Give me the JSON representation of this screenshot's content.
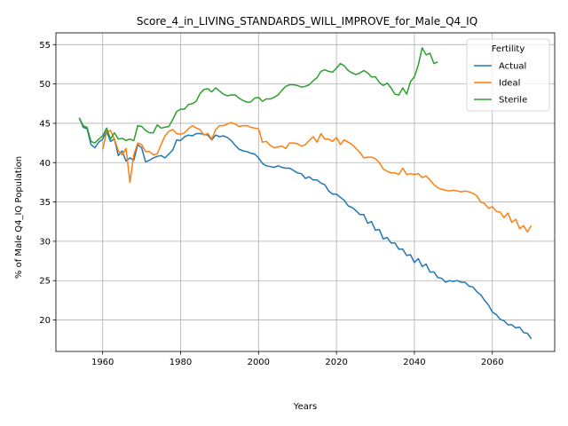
{
  "chart_data": {
    "type": "line",
    "title": "Score_4_in_LIVING_STANDARDS_WILL_IMPROVE_for_Male_Q4_IQ",
    "xlabel": "Years",
    "ylabel": "% of Male Q4_IQ Population",
    "xlim": [
      1948,
      2076
    ],
    "ylim": [
      16,
      56.5
    ],
    "xticks": [
      1960,
      1980,
      2000,
      2020,
      2040,
      2060
    ],
    "yticks": [
      20,
      25,
      30,
      35,
      40,
      45,
      50,
      55
    ],
    "grid": true,
    "legend": {
      "title": "Fertility",
      "placement": "top-right"
    },
    "series": [
      {
        "name": "Actual",
        "color": "#1f77b4",
        "x": [
          1954,
          1955,
          1956,
          1957,
          1958,
          1959,
          1960,
          1961,
          1962,
          1963,
          1964,
          1965,
          1966,
          1967,
          1968,
          1969,
          1970,
          1971,
          1972,
          1973,
          1974,
          1975,
          1976,
          1977,
          1978,
          1979,
          1980,
          1981,
          1982,
          1983,
          1984,
          1985,
          1986,
          1987,
          1988,
          1989,
          1990,
          1991,
          1992,
          1993,
          1994,
          1995,
          1996,
          1997,
          1998,
          1999,
          2000,
          2001,
          2002,
          2003,
          2004,
          2005,
          2006,
          2007,
          2008,
          2009,
          2010,
          2011,
          2012,
          2013,
          2014,
          2015,
          2016,
          2017,
          2018,
          2019,
          2020,
          2021,
          2022,
          2023,
          2024,
          2025,
          2026,
          2027,
          2028,
          2029,
          2030,
          2031,
          2032,
          2033,
          2034,
          2035,
          2036,
          2037,
          2038,
          2039,
          2040,
          2041,
          2042,
          2043,
          2044,
          2045,
          2046,
          2047,
          2048,
          2049,
          2050,
          2051,
          2052,
          2053,
          2054,
          2055,
          2056,
          2057,
          2058,
          2059,
          2060,
          2061,
          2062,
          2063,
          2064,
          2065,
          2066,
          2067,
          2068,
          2069,
          2070
        ],
        "y": [
          45.7,
          44.5,
          44.3,
          42.3,
          41.9,
          42.6,
          43.0,
          44.0,
          42.7,
          43.0,
          40.9,
          41.5,
          40.2,
          40.6,
          40.3,
          42.3,
          41.9,
          40.1,
          40.3,
          40.6,
          40.8,
          40.9,
          40.6,
          41.1,
          41.6,
          42.9,
          42.8,
          43.3,
          43.5,
          43.4,
          43.7,
          43.7,
          43.6,
          43.5,
          42.9,
          43.5,
          43.3,
          43.4,
          43.2,
          42.8,
          42.2,
          41.7,
          41.5,
          41.4,
          41.2,
          41.1,
          40.6,
          39.9,
          39.6,
          39.5,
          39.4,
          39.6,
          39.4,
          39.3,
          39.3,
          39.0,
          38.7,
          38.6,
          38.0,
          38.2,
          37.8,
          37.8,
          37.4,
          37.2,
          36.4,
          36.0,
          36.0,
          35.6,
          35.2,
          34.5,
          34.3,
          33.9,
          33.4,
          33.4,
          32.3,
          32.5,
          31.4,
          31.5,
          30.3,
          30.5,
          29.8,
          29.8,
          29.0,
          29.0,
          28.2,
          28.3,
          27.3,
          27.8,
          26.8,
          27.1,
          26.1,
          26.1,
          25.4,
          25.3,
          24.8,
          25.0,
          24.9,
          25.0,
          24.8,
          24.8,
          24.3,
          24.2,
          23.6,
          23.2,
          22.5,
          21.9,
          21.0,
          20.7,
          20.1,
          19.9,
          19.4,
          19.4,
          19.0,
          19.1,
          18.4,
          18.3,
          17.6
        ]
      },
      {
        "name": "Ideal",
        "color": "#ff7f0e",
        "x": [
          1960,
          1961,
          1962,
          1963,
          1964,
          1965,
          1966,
          1967,
          1968,
          1969,
          1970,
          1971,
          1972,
          1973,
          1974,
          1975,
          1976,
          1977,
          1978,
          1979,
          1980,
          1981,
          1982,
          1983,
          1984,
          1985,
          1986,
          1987,
          1988,
          1989,
          1990,
          1991,
          1992,
          1993,
          1994,
          1995,
          1996,
          1997,
          1998,
          1999,
          2000,
          2001,
          2002,
          2003,
          2004,
          2005,
          2006,
          2007,
          2008,
          2009,
          2010,
          2011,
          2012,
          2013,
          2014,
          2015,
          2016,
          2017,
          2018,
          2019,
          2020,
          2021,
          2022,
          2023,
          2024,
          2025,
          2026,
          2027,
          2028,
          2029,
          2030,
          2031,
          2032,
          2033,
          2034,
          2035,
          2036,
          2037,
          2038,
          2039,
          2040,
          2041,
          2042,
          2043,
          2044,
          2045,
          2046,
          2047,
          2048,
          2049,
          2050,
          2051,
          2052,
          2053,
          2054,
          2055,
          2056,
          2057,
          2058,
          2059,
          2060,
          2061,
          2062,
          2063,
          2064,
          2065,
          2066,
          2067,
          2068,
          2069,
          2070
        ],
        "y": [
          41.7,
          43.9,
          44.1,
          43.0,
          41.5,
          41.0,
          41.8,
          37.5,
          41.0,
          42.5,
          42.3,
          41.4,
          41.4,
          41.0,
          41.1,
          42.3,
          43.4,
          44.0,
          44.2,
          43.7,
          43.6,
          43.8,
          44.3,
          44.7,
          44.4,
          44.2,
          43.5,
          43.7,
          43.0,
          44.2,
          44.7,
          44.7,
          44.9,
          45.1,
          44.9,
          44.6,
          44.7,
          44.7,
          44.5,
          44.4,
          44.3,
          42.6,
          42.7,
          42.2,
          41.9,
          42.0,
          42.1,
          41.8,
          42.5,
          42.5,
          42.4,
          42.1,
          42.3,
          42.8,
          43.3,
          42.6,
          43.7,
          43.0,
          43.0,
          42.7,
          43.2,
          42.3,
          42.9,
          42.6,
          42.3,
          41.8,
          41.3,
          40.6,
          40.7,
          40.7,
          40.5,
          40.0,
          39.2,
          38.9,
          38.7,
          38.7,
          38.5,
          39.3,
          38.5,
          38.6,
          38.5,
          38.6,
          38.1,
          38.3,
          37.8,
          37.2,
          36.8,
          36.6,
          36.5,
          36.4,
          36.5,
          36.4,
          36.3,
          36.4,
          36.3,
          36.1,
          35.8,
          35.0,
          34.8,
          34.2,
          34.4,
          33.8,
          33.7,
          33.0,
          33.6,
          32.4,
          32.8,
          31.6,
          32.0,
          31.2,
          32.0
        ]
      },
      {
        "name": "Sterile",
        "color": "#2ca02c",
        "x": [
          1954,
          1955,
          1956,
          1957,
          1958,
          1959,
          1960,
          1961,
          1962,
          1963,
          1964,
          1965,
          1966,
          1967,
          1968,
          1969,
          1970,
          1971,
          1972,
          1973,
          1974,
          1975,
          1976,
          1977,
          1978,
          1979,
          1980,
          1981,
          1982,
          1983,
          1984,
          1985,
          1986,
          1987,
          1988,
          1989,
          1990,
          1991,
          1992,
          1993,
          1994,
          1995,
          1996,
          1997,
          1998,
          1999,
          2000,
          2001,
          2002,
          2003,
          2004,
          2005,
          2006,
          2007,
          2008,
          2009,
          2010,
          2011,
          2012,
          2013,
          2014,
          2015,
          2016,
          2017,
          2018,
          2019,
          2020,
          2021,
          2022,
          2023,
          2024,
          2025,
          2026,
          2027,
          2028,
          2029,
          2030,
          2031,
          2032,
          2033,
          2034,
          2035,
          2036,
          2037,
          2038,
          2039,
          2040,
          2041,
          2042,
          2043,
          2044,
          2045,
          2046
        ],
        "y": [
          45.7,
          44.7,
          44.5,
          42.7,
          42.5,
          43.0,
          43.4,
          44.4,
          43.0,
          43.8,
          43.0,
          43.1,
          42.8,
          43.0,
          42.8,
          44.7,
          44.6,
          44.1,
          43.8,
          43.8,
          44.8,
          44.4,
          44.5,
          44.6,
          45.5,
          46.5,
          46.8,
          46.8,
          47.4,
          47.5,
          47.8,
          48.8,
          49.3,
          49.4,
          49.0,
          49.5,
          49.1,
          48.7,
          48.5,
          48.6,
          48.6,
          48.2,
          47.9,
          47.7,
          47.7,
          48.2,
          48.3,
          47.8,
          48.1,
          48.1,
          48.3,
          48.6,
          49.2,
          49.7,
          49.9,
          49.9,
          49.8,
          49.6,
          49.7,
          49.9,
          50.4,
          50.8,
          51.6,
          51.8,
          51.6,
          51.5,
          52.0,
          52.6,
          52.3,
          51.7,
          51.4,
          51.2,
          51.4,
          51.7,
          51.4,
          50.9,
          50.9,
          50.2,
          49.8,
          50.1,
          49.5,
          48.7,
          48.6,
          49.5,
          48.7,
          50.3,
          50.9,
          52.4,
          54.6,
          53.7,
          53.9,
          52.6,
          52.8
        ]
      }
    ]
  }
}
